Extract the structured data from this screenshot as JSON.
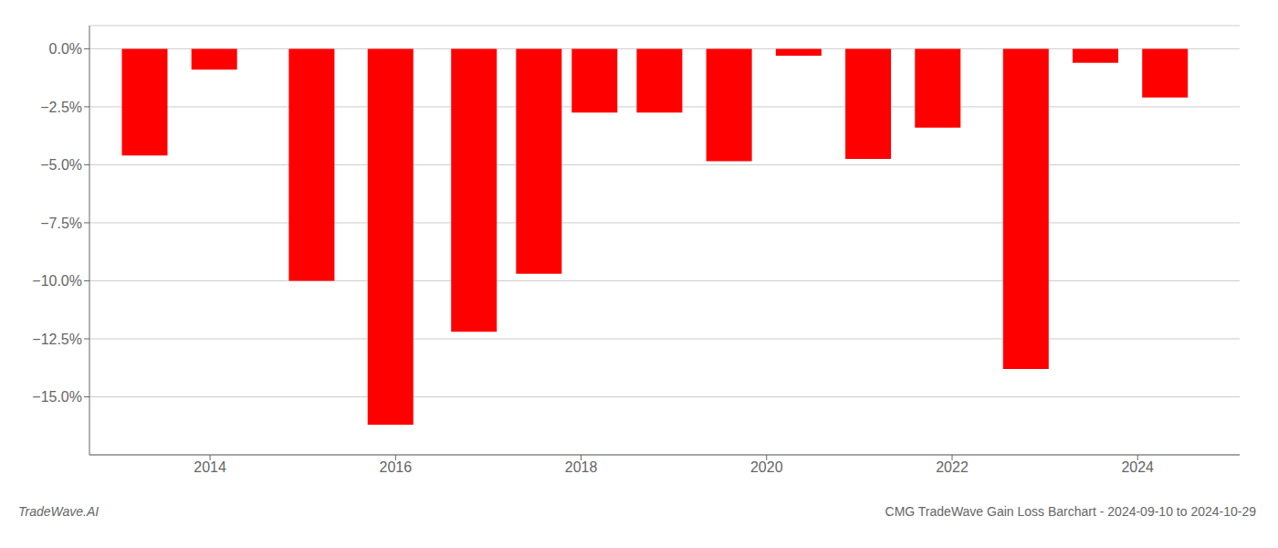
{
  "chart_data": {
    "type": "bar",
    "title": "CMG TradeWave Gain Loss Barchart - 2024-09-10 to 2024-10-29",
    "annotations": [
      "TradeWave.AI"
    ],
    "x": [
      2013.3,
      2014.05,
      2015.1,
      2015.95,
      2016.85,
      2017.55,
      2018.15,
      2018.85,
      2019.6,
      2020.35,
      2021.1,
      2021.85,
      2022.8,
      2023.55,
      2024.3
    ],
    "values": [
      -4.6,
      -0.9,
      -10.0,
      -16.2,
      -12.2,
      -9.7,
      -2.75,
      -2.75,
      -4.85,
      -0.3,
      -4.75,
      -3.4,
      -13.8,
      -0.6,
      -2.1
    ],
    "color": "#ff0000",
    "xlim": [
      2012.7,
      2025.1
    ],
    "xticks": [
      2014,
      2016,
      2018,
      2020,
      2022,
      2024
    ],
    "ylim": [
      -17.5,
      1.0
    ],
    "yticks": [
      {
        "value": 0,
        "label": "0.0%"
      },
      {
        "value": -2.5,
        "label": "−2.5%"
      },
      {
        "value": -5.0,
        "label": "−5.0%"
      },
      {
        "value": -7.5,
        "label": "−7.5%"
      },
      {
        "value": -10.0,
        "label": "−10.0%"
      },
      {
        "value": -12.5,
        "label": "−12.5%"
      },
      {
        "value": -15.0,
        "label": "−15.0%"
      }
    ],
    "grid": true
  }
}
